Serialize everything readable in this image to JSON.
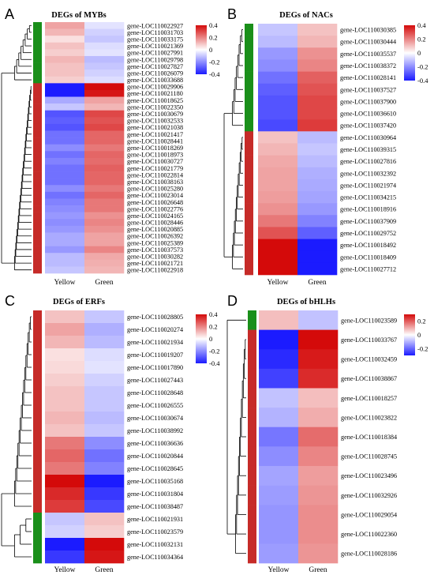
{
  "colors": {
    "low": "#1b1bff",
    "mid": "#ffffff",
    "high": "#d40a0a",
    "group_red": "#c62b28",
    "group_green": "#1a8f1a"
  },
  "chart_data": [
    {
      "type": "heatmap",
      "panel": "A",
      "title": "DEGs of MYBs",
      "columns": [
        "Yellow",
        "Green"
      ],
      "colorbar": {
        "range": [
          -0.4,
          0.4
        ],
        "ticks": [
          "0.4",
          "0.2",
          "0",
          "-0.2",
          "-0.4"
        ]
      },
      "rows": [
        {
          "gene": "gene-LOC110022927",
          "values": [
            0.15,
            -0.05
          ],
          "group": "green"
        },
        {
          "gene": "gene-LOC110031703",
          "values": [
            0.12,
            -0.08
          ],
          "group": "green"
        },
        {
          "gene": "gene-LOC110033175",
          "values": [
            0.05,
            -0.1
          ],
          "group": "green"
        },
        {
          "gene": "gene-LOC110021369",
          "values": [
            0.1,
            -0.06
          ],
          "group": "green"
        },
        {
          "gene": "gene-LOC110027991",
          "values": [
            0.08,
            -0.05
          ],
          "group": "green"
        },
        {
          "gene": "gene-LOC110029798",
          "values": [
            0.12,
            -0.12
          ],
          "group": "green"
        },
        {
          "gene": "gene-LOC110027827",
          "values": [
            0.1,
            -0.1
          ],
          "group": "green"
        },
        {
          "gene": "gene-LOC110026079",
          "values": [
            0.1,
            -0.08
          ],
          "group": "green"
        },
        {
          "gene": "gene-LOC110033688",
          "values": [
            0.08,
            -0.06
          ],
          "group": "green"
        },
        {
          "gene": "gene-LOC110029906",
          "values": [
            -0.45,
            0.45
          ],
          "group": "red"
        },
        {
          "gene": "gene-LOC110021180",
          "values": [
            -0.4,
            0.38
          ],
          "group": "red"
        },
        {
          "gene": "gene-LOC110018625",
          "values": [
            -0.15,
            0.15
          ],
          "group": "red"
        },
        {
          "gene": "gene-LOC110022350",
          "values": [
            -0.1,
            0.12
          ],
          "group": "red"
        },
        {
          "gene": "gene-LOC110030679",
          "values": [
            -0.3,
            0.3
          ],
          "group": "red"
        },
        {
          "gene": "gene-LOC110032533",
          "values": [
            -0.28,
            0.28
          ],
          "group": "red"
        },
        {
          "gene": "gene-LOC110021038",
          "values": [
            -0.3,
            0.3
          ],
          "group": "red"
        },
        {
          "gene": "gene-LOC110021417",
          "values": [
            -0.25,
            0.25
          ],
          "group": "red"
        },
        {
          "gene": "gene-LOC110028441",
          "values": [
            -0.25,
            0.25
          ],
          "group": "red"
        },
        {
          "gene": "gene-LOC110018269",
          "values": [
            -0.2,
            0.22
          ],
          "group": "red"
        },
        {
          "gene": "gene-LOC110018973",
          "values": [
            -0.25,
            0.25
          ],
          "group": "red"
        },
        {
          "gene": "gene-LOC110030727",
          "values": [
            -0.22,
            0.24
          ],
          "group": "red"
        },
        {
          "gene": "gene-LOC110021779",
          "values": [
            -0.25,
            0.26
          ],
          "group": "red"
        },
        {
          "gene": "gene-LOC110022814",
          "values": [
            -0.25,
            0.25
          ],
          "group": "red"
        },
        {
          "gene": "gene-LOC110038163",
          "values": [
            -0.25,
            0.25
          ],
          "group": "red"
        },
        {
          "gene": "gene-LOC110025280",
          "values": [
            -0.2,
            0.22
          ],
          "group": "red"
        },
        {
          "gene": "gene-LOC110023014",
          "values": [
            -0.25,
            0.25
          ],
          "group": "red"
        },
        {
          "gene": "gene-LOC110026648",
          "values": [
            -0.22,
            0.22
          ],
          "group": "red"
        },
        {
          "gene": "gene-LOC110022776",
          "values": [
            -0.2,
            0.22
          ],
          "group": "red"
        },
        {
          "gene": "gene-LOC110024165",
          "values": [
            -0.18,
            0.18
          ],
          "group": "red"
        },
        {
          "gene": "gene-LOC110028446",
          "values": [
            -0.2,
            0.2
          ],
          "group": "red"
        },
        {
          "gene": "gene-LOC110020885",
          "values": [
            -0.18,
            0.18
          ],
          "group": "red"
        },
        {
          "gene": "gene-LOC110026392",
          "values": [
            -0.15,
            0.15
          ],
          "group": "red"
        },
        {
          "gene": "gene-LOC110025389",
          "values": [
            -0.15,
            0.15
          ],
          "group": "red"
        },
        {
          "gene": "gene-LOC110037573",
          "values": [
            -0.18,
            0.2
          ],
          "group": "red"
        },
        {
          "gene": "gene-LOC110030282",
          "values": [
            -0.12,
            0.14
          ],
          "group": "red"
        },
        {
          "gene": "gene-LOC110021721",
          "values": [
            -0.12,
            0.13
          ],
          "group": "red"
        },
        {
          "gene": "gene-LOC110022918",
          "values": [
            -0.1,
            0.12
          ],
          "group": "red"
        }
      ]
    },
    {
      "type": "heatmap",
      "panel": "B",
      "title": "DEGs of NACs",
      "columns": [
        "Yellow",
        "Green"
      ],
      "colorbar": {
        "range": [
          -0.4,
          0.4
        ],
        "ticks": [
          "0.4",
          "0.2",
          "0",
          "-0.2",
          "-0.4"
        ]
      },
      "rows": [
        {
          "gene": "gene-LOC110030385",
          "values": [
            -0.1,
            0.1
          ],
          "group": "green"
        },
        {
          "gene": "gene-LOC110030444",
          "values": [
            -0.12,
            0.12
          ],
          "group": "green"
        },
        {
          "gene": "gene-LOC110035537",
          "values": [
            -0.18,
            0.18
          ],
          "group": "green"
        },
        {
          "gene": "gene-LOC110038372",
          "values": [
            -0.2,
            0.2
          ],
          "group": "green"
        },
        {
          "gene": "gene-LOC110028141",
          "values": [
            -0.25,
            0.26
          ],
          "group": "green"
        },
        {
          "gene": "gene-LOC110037527",
          "values": [
            -0.28,
            0.28
          ],
          "group": "green"
        },
        {
          "gene": "gene-LOC110037900",
          "values": [
            -0.3,
            0.3
          ],
          "group": "green"
        },
        {
          "gene": "gene-LOC110036610",
          "values": [
            -0.3,
            0.3
          ],
          "group": "green"
        },
        {
          "gene": "gene-LOC110037420",
          "values": [
            -0.32,
            0.32
          ],
          "group": "green"
        },
        {
          "gene": "gene-LOC110030964",
          "values": [
            0.1,
            -0.12
          ],
          "group": "red"
        },
        {
          "gene": "gene-LOC110039315",
          "values": [
            0.12,
            -0.1
          ],
          "group": "red"
        },
        {
          "gene": "gene-LOC110027816",
          "values": [
            0.14,
            -0.12
          ],
          "group": "red"
        },
        {
          "gene": "gene-LOC110032392",
          "values": [
            0.15,
            -0.14
          ],
          "group": "red"
        },
        {
          "gene": "gene-LOC110021974",
          "values": [
            0.15,
            -0.15
          ],
          "group": "red"
        },
        {
          "gene": "gene-LOC110034215",
          "values": [
            0.16,
            -0.16
          ],
          "group": "red"
        },
        {
          "gene": "gene-LOC110018916",
          "values": [
            0.18,
            -0.18
          ],
          "group": "red"
        },
        {
          "gene": "gene-LOC110037909",
          "values": [
            0.22,
            -0.22
          ],
          "group": "red"
        },
        {
          "gene": "gene-LOC110029752",
          "values": [
            0.28,
            -0.28
          ],
          "group": "red"
        },
        {
          "gene": "gene-LOC110018492",
          "values": [
            0.42,
            -0.42
          ],
          "group": "red"
        },
        {
          "gene": "gene-LOC110018409",
          "values": [
            0.44,
            -0.44
          ],
          "group": "red"
        },
        {
          "gene": "gene-LOC110027712",
          "values": [
            0.4,
            -0.4
          ],
          "group": "red"
        }
      ]
    },
    {
      "type": "heatmap",
      "panel": "C",
      "title": "DEGs of ERFs",
      "columns": [
        "Yellow",
        "Green"
      ],
      "colorbar": {
        "range": [
          -0.4,
          0.4
        ],
        "ticks": [
          "0.4",
          "0.2",
          "0",
          "-0.2",
          "-0.4"
        ]
      },
      "rows": [
        {
          "gene": "gene-LOC110028805",
          "values": [
            0.1,
            -0.1
          ],
          "group": "red"
        },
        {
          "gene": "gene-LOC110020274",
          "values": [
            0.15,
            -0.14
          ],
          "group": "red"
        },
        {
          "gene": "gene-LOC110021934",
          "values": [
            0.12,
            -0.12
          ],
          "group": "red"
        },
        {
          "gene": "gene-LOC110019207",
          "values": [
            0.05,
            -0.06
          ],
          "group": "red"
        },
        {
          "gene": "gene-LOC110017890",
          "values": [
            0.06,
            -0.05
          ],
          "group": "red"
        },
        {
          "gene": "gene-LOC110027443",
          "values": [
            0.08,
            -0.08
          ],
          "group": "red"
        },
        {
          "gene": "gene-LOC110028648",
          "values": [
            0.1,
            -0.1
          ],
          "group": "red"
        },
        {
          "gene": "gene-LOC110026555",
          "values": [
            0.1,
            -0.1
          ],
          "group": "red"
        },
        {
          "gene": "gene-LOC110030674",
          "values": [
            0.12,
            -0.12
          ],
          "group": "red"
        },
        {
          "gene": "gene-LOC110038992",
          "values": [
            0.1,
            -0.1
          ],
          "group": "red"
        },
        {
          "gene": "gene-LOC110036636",
          "values": [
            0.22,
            -0.2
          ],
          "group": "red"
        },
        {
          "gene": "gene-LOC110020844",
          "values": [
            0.25,
            -0.25
          ],
          "group": "red"
        },
        {
          "gene": "gene-LOC110028645",
          "values": [
            0.22,
            -0.22
          ],
          "group": "red"
        },
        {
          "gene": "gene-LOC110035168",
          "values": [
            0.4,
            -0.4
          ],
          "group": "red"
        },
        {
          "gene": "gene-LOC110031804",
          "values": [
            0.35,
            -0.35
          ],
          "group": "red"
        },
        {
          "gene": "gene-LOC110038487",
          "values": [
            0.32,
            -0.32
          ],
          "group": "red"
        },
        {
          "gene": "gene-LOC110021931",
          "values": [
            -0.1,
            0.1
          ],
          "group": "green"
        },
        {
          "gene": "gene-LOC110023579",
          "values": [
            -0.08,
            0.08
          ],
          "group": "green"
        },
        {
          "gene": "gene-LOC110032131",
          "values": [
            -0.45,
            0.45
          ],
          "group": "green"
        },
        {
          "gene": "gene-LOC110034364",
          "values": [
            -0.35,
            0.38
          ],
          "group": "green"
        }
      ]
    },
    {
      "type": "heatmap",
      "panel": "D",
      "title": "DEGs of bHLHs",
      "columns": [
        "Yellow",
        "Green"
      ],
      "colorbar": {
        "range": [
          -0.3,
          0.3
        ],
        "ticks": [
          "0.2",
          "0",
          "-0.2"
        ]
      },
      "rows": [
        {
          "gene": "gene-LOC110023589",
          "values": [
            0.08,
            -0.08
          ],
          "group": "green"
        },
        {
          "gene": "gene-LOC110033767",
          "values": [
            -0.3,
            0.3
          ],
          "group": "red"
        },
        {
          "gene": "gene-LOC110032459",
          "values": [
            -0.28,
            0.28
          ],
          "group": "red"
        },
        {
          "gene": "gene-LOC110038867",
          "values": [
            -0.25,
            0.26
          ],
          "group": "red"
        },
        {
          "gene": "gene-LOC110018257",
          "values": [
            -0.08,
            0.08
          ],
          "group": "red"
        },
        {
          "gene": "gene-LOC110023822",
          "values": [
            -0.1,
            0.1
          ],
          "group": "red"
        },
        {
          "gene": "gene-LOC110018384",
          "values": [
            -0.18,
            0.18
          ],
          "group": "red"
        },
        {
          "gene": "gene-LOC110028745",
          "values": [
            -0.15,
            0.15
          ],
          "group": "red"
        },
        {
          "gene": "gene-LOC110023496",
          "values": [
            -0.12,
            0.12
          ],
          "group": "red"
        },
        {
          "gene": "gene-LOC110032926",
          "values": [
            -0.13,
            0.13
          ],
          "group": "red"
        },
        {
          "gene": "gene-LOC110029054",
          "values": [
            -0.14,
            0.14
          ],
          "group": "red"
        },
        {
          "gene": "gene-LOC110022360",
          "values": [
            -0.14,
            0.14
          ],
          "group": "red"
        },
        {
          "gene": "gene-LOC110028186",
          "values": [
            -0.13,
            0.13
          ],
          "group": "red"
        }
      ]
    }
  ]
}
